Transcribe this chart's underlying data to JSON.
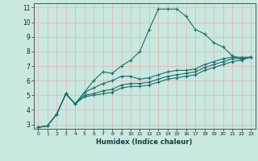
{
  "xlabel": "Humidex (Indice chaleur)",
  "xlim": [
    -0.5,
    23.5
  ],
  "ylim": [
    2.7,
    11.3
  ],
  "xticks": [
    0,
    1,
    2,
    3,
    4,
    5,
    6,
    7,
    8,
    9,
    10,
    11,
    12,
    13,
    14,
    15,
    16,
    17,
    18,
    19,
    20,
    21,
    22,
    23
  ],
  "yticks": [
    3,
    4,
    5,
    6,
    7,
    8,
    9,
    10,
    11
  ],
  "bg_color": "#c8e8e0",
  "plot_bg": "#c8e8e0",
  "grid_color": "#e8b8b8",
  "line_color": "#1a6e6a",
  "series": [
    [
      2.8,
      2.9,
      3.7,
      5.1,
      4.4,
      5.2,
      6.0,
      6.6,
      6.5,
      7.0,
      7.4,
      8.0,
      9.5,
      10.9,
      10.9,
      10.9,
      10.4,
      9.5,
      9.2,
      8.6,
      8.3,
      7.7,
      7.5,
      7.6
    ],
    [
      2.8,
      2.9,
      3.7,
      5.1,
      4.4,
      5.2,
      5.5,
      5.8,
      6.0,
      6.3,
      6.3,
      6.1,
      6.2,
      6.4,
      6.6,
      6.7,
      6.7,
      6.8,
      7.1,
      7.3,
      7.5,
      7.6,
      7.6,
      7.6
    ],
    [
      2.8,
      2.9,
      3.7,
      5.1,
      4.4,
      5.0,
      5.1,
      5.3,
      5.4,
      5.7,
      5.8,
      5.8,
      5.9,
      6.1,
      6.3,
      6.4,
      6.5,
      6.6,
      6.9,
      7.1,
      7.3,
      7.5,
      7.5,
      7.6
    ],
    [
      2.8,
      2.9,
      3.7,
      5.1,
      4.4,
      4.9,
      5.0,
      5.1,
      5.2,
      5.5,
      5.6,
      5.6,
      5.7,
      5.9,
      6.1,
      6.2,
      6.3,
      6.4,
      6.7,
      6.9,
      7.1,
      7.3,
      7.4,
      7.6
    ]
  ]
}
